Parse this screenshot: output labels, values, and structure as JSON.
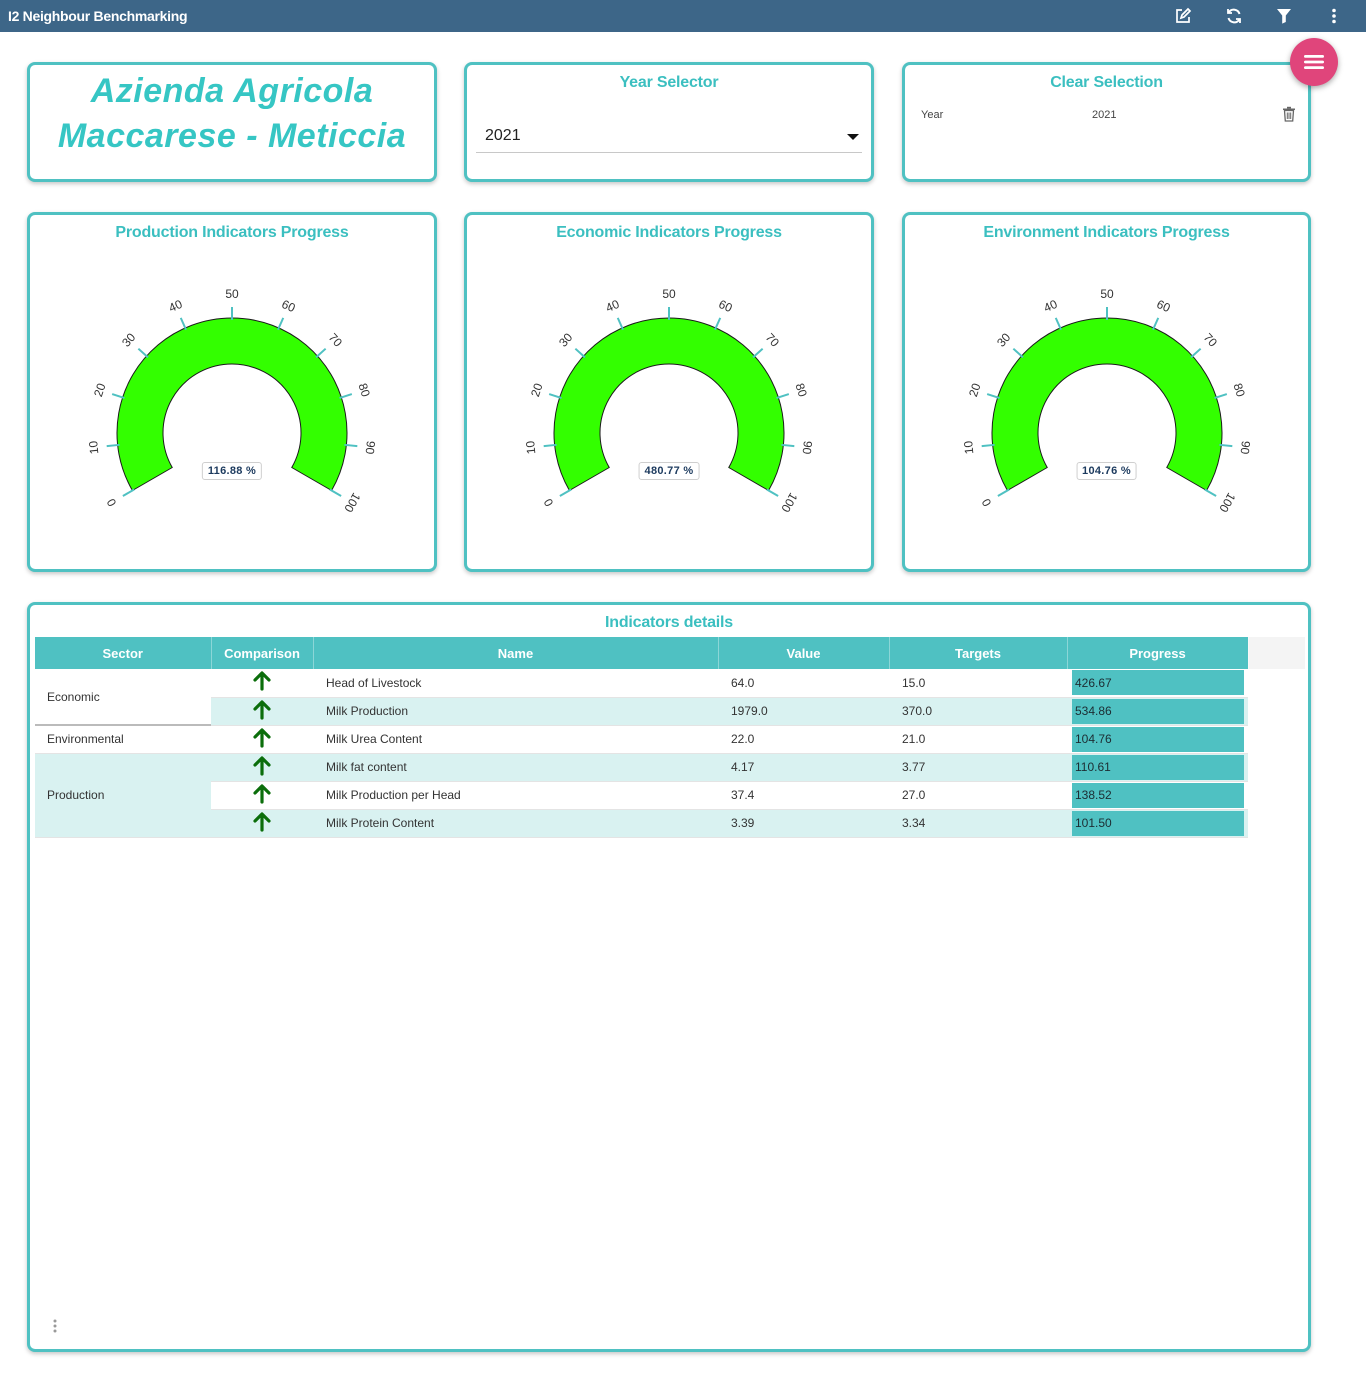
{
  "app": {
    "title": "I2 Neighbour Benchmarking",
    "toolbar_icons": [
      "edit-icon",
      "refresh-icon",
      "filter-icon",
      "more-vertical-icon"
    ],
    "fab_icon": "menu-icon"
  },
  "farm": {
    "line1": "Azienda Agricola",
    "line2": "Maccarese - Meticcia"
  },
  "year_selector": {
    "title": "Year Selector",
    "value": "2021"
  },
  "clear_selection": {
    "title": "Clear Selection",
    "field": "Year",
    "value": "2021",
    "icon": "trash-icon"
  },
  "gauges": [
    {
      "title": "Production Indicators Progress",
      "value_label": "116.88 %",
      "value": 116.88
    },
    {
      "title": "Economic Indicators Progress",
      "value_label": "480.77 %",
      "value": 480.77
    },
    {
      "title": "Environment Indicators Progress",
      "value_label": "104.76 %",
      "value": 104.76
    }
  ],
  "gauge_scale": {
    "min": 0,
    "max": 100,
    "ticks": [
      "0",
      "10",
      "20",
      "30",
      "40",
      "50",
      "60",
      "70",
      "80",
      "90",
      "100"
    ]
  },
  "details": {
    "title": "Indicators details",
    "columns": [
      "Sector",
      "Comparison",
      "Name",
      "Value",
      "Targets",
      "Progress"
    ],
    "groups": [
      {
        "sector": "Economic",
        "rows": [
          {
            "comparison": "up-arrow-icon",
            "name": "Head of Livestock",
            "value": "64.0",
            "target": "15.0",
            "progress": "426.67"
          },
          {
            "comparison": "up-arrow-icon",
            "name": "Milk Production",
            "value": "1979.0",
            "target": "370.0",
            "progress": "534.86"
          }
        ]
      },
      {
        "sector": "Environmental",
        "rows": [
          {
            "comparison": "up-arrow-icon",
            "name": "Milk Urea Content",
            "value": "22.0",
            "target": "21.0",
            "progress": "104.76"
          }
        ]
      },
      {
        "sector": "Production",
        "rows": [
          {
            "comparison": "up-arrow-icon",
            "name": "Milk fat content",
            "value": "4.17",
            "target": "3.77",
            "progress": "110.61"
          },
          {
            "comparison": "up-arrow-icon",
            "name": "Milk Production per Head",
            "value": "37.4",
            "target": "27.0",
            "progress": "138.52"
          },
          {
            "comparison": "up-arrow-icon",
            "name": "Milk Protein Content",
            "value": "3.39",
            "target": "3.34",
            "progress": "101.50"
          }
        ]
      }
    ]
  },
  "colors": {
    "topbar": "#3d6688",
    "accent": "#4fc1c2",
    "farm_title": "#36c6c4",
    "gauge_fill": "#33ff00",
    "fab": "#e0457b",
    "arrow": "#0b6e0b",
    "alt_row": "#d9f2f1"
  }
}
